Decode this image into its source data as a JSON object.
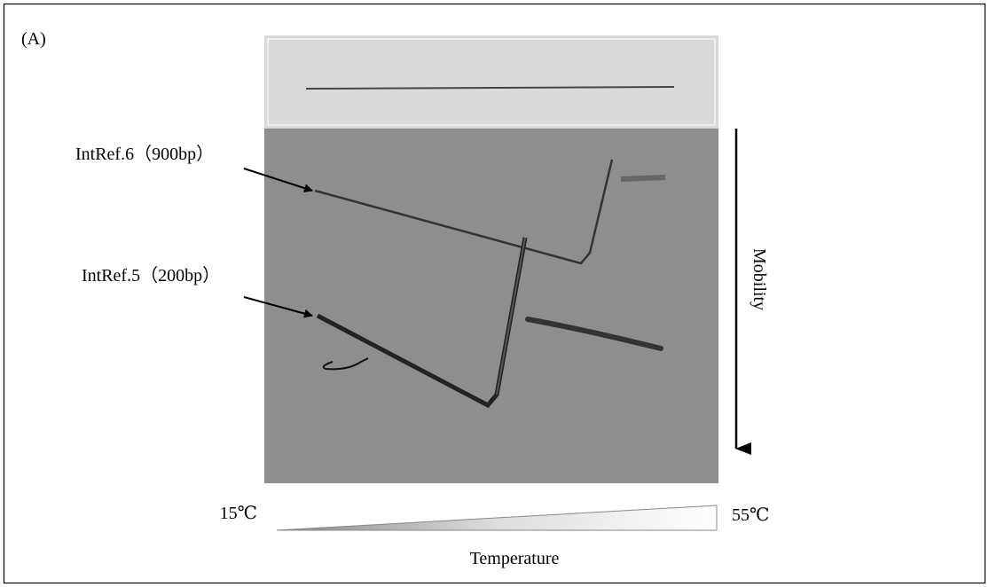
{
  "panel_label": "(A)",
  "bands": {
    "upper": "IntRef.6（900bp）",
    "lower": "IntRef.5（200bp）"
  },
  "axes": {
    "mobility": "Mobility",
    "temperature": "Temperature",
    "temp_low": "15℃",
    "temp_high": "55℃"
  }
}
